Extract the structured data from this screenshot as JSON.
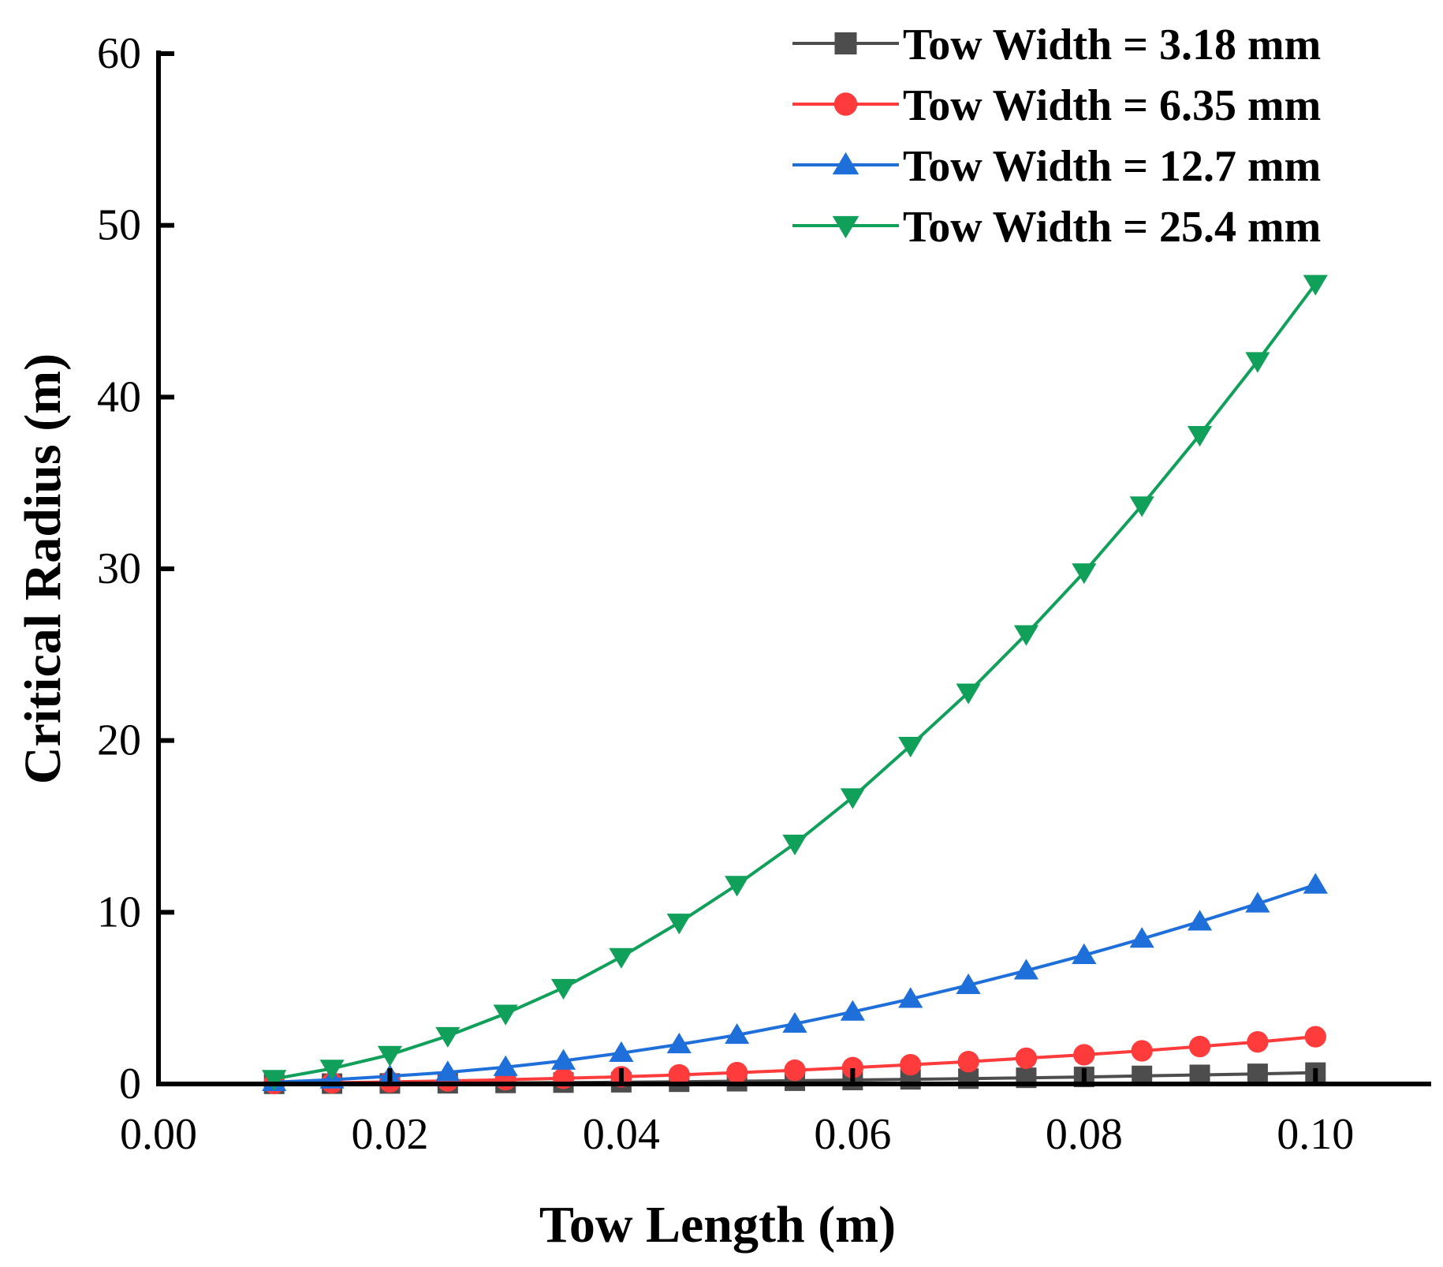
{
  "chart_data": {
    "type": "line",
    "title": "",
    "xlabel": "Tow Length (m)",
    "ylabel": "Critical Radius (m)",
    "xlim": [
      0.0,
      0.11
    ],
    "ylim": [
      0,
      60
    ],
    "x_ticks": [
      0.0,
      0.02,
      0.04,
      0.06,
      0.08,
      0.1
    ],
    "x_tick_labels": [
      "0.00",
      "0.02",
      "0.04",
      "0.06",
      "0.08",
      "0.10"
    ],
    "y_ticks": [
      0,
      10,
      20,
      30,
      40,
      50,
      60
    ],
    "y_tick_labels": [
      "0",
      "10",
      "20",
      "30",
      "40",
      "50",
      "60"
    ],
    "grid": false,
    "legend_position": "top-right",
    "x": [
      0.01,
      0.015,
      0.02,
      0.025,
      0.03,
      0.035,
      0.04,
      0.045,
      0.05,
      0.055,
      0.06,
      0.065,
      0.07,
      0.075,
      0.08,
      0.085,
      0.09,
      0.095,
      0.1
    ],
    "series": [
      {
        "name": "Tow Width = 3.18 mm",
        "color": "#4d4d4d",
        "marker": "square",
        "values": [
          0.01,
          0.02,
          0.03,
          0.04,
          0.06,
          0.08,
          0.1,
          0.13,
          0.16,
          0.19,
          0.23,
          0.27,
          0.31,
          0.36,
          0.41,
          0.47,
          0.53,
          0.59,
          0.66
        ]
      },
      {
        "name": "Tow Width = 6.35 mm",
        "color": "#ff3b3b",
        "marker": "circle",
        "values": [
          0.03,
          0.07,
          0.12,
          0.18,
          0.25,
          0.33,
          0.42,
          0.53,
          0.66,
          0.8,
          0.95,
          1.12,
          1.3,
          1.5,
          1.7,
          1.93,
          2.18,
          2.45,
          2.75
        ]
      },
      {
        "name": "Tow Width = 12.7 mm",
        "color": "#1e6fd9",
        "marker": "triangle-up",
        "values": [
          0.1,
          0.25,
          0.45,
          0.68,
          0.98,
          1.35,
          1.8,
          2.3,
          2.85,
          3.5,
          4.2,
          4.95,
          5.75,
          6.6,
          7.5,
          8.45,
          9.45,
          10.5,
          11.6
        ]
      },
      {
        "name": "Tow Width = 25.4 mm",
        "color": "#10a05a",
        "marker": "triangle-down",
        "values": [
          0.3,
          0.9,
          1.7,
          2.8,
          4.1,
          5.6,
          7.4,
          9.4,
          11.6,
          14.0,
          16.7,
          19.7,
          22.8,
          26.2,
          29.8,
          33.7,
          37.8,
          42.1,
          46.6
        ]
      }
    ]
  }
}
